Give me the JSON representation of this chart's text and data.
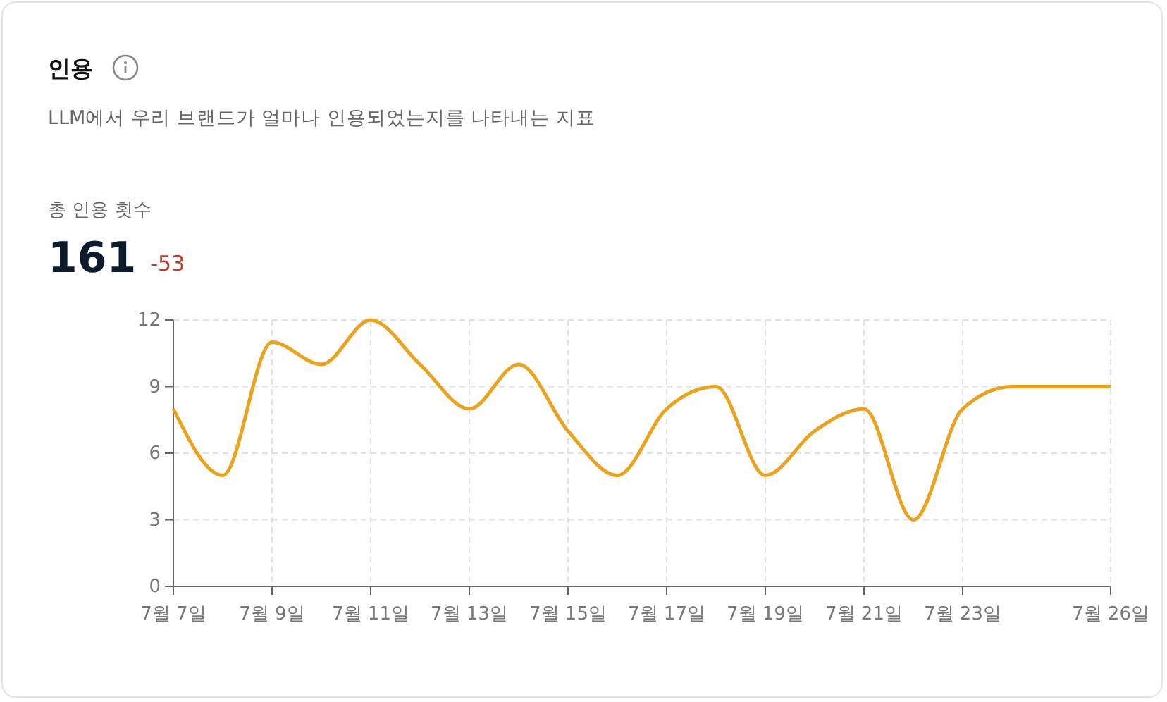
{
  "chart_data": {
    "type": "line",
    "title": "인용",
    "subtitle": "LLM에서 우리 브랜드가 얼마나 인용되었는지를 나타내는 지표",
    "annotations": [
      "총 인용 횟수",
      "161",
      "-53"
    ],
    "x": [
      "--07-07",
      "--07-08",
      "--07-09",
      "--07-10",
      "--07-11",
      "--07-12",
      "--07-13",
      "--07-14",
      "--07-15",
      "--07-16",
      "--07-17",
      "--07-18",
      "--07-19",
      "--07-20",
      "--07-21",
      "--07-22",
      "--07-23",
      "--07-24",
      "--07-25",
      "--07-26"
    ],
    "series": [
      {
        "color": "#eba21c",
        "values": [
          8,
          5,
          11,
          10,
          12,
          10,
          8,
          10,
          7,
          5,
          8,
          9,
          5,
          7,
          8,
          3,
          8,
          9,
          9,
          9
        ]
      }
    ],
    "xlim": [
      "--07-07",
      "--07-26"
    ],
    "xticks": [
      {
        "value": "--07-07",
        "label": "7월 7일"
      },
      {
        "value": "--07-09",
        "label": "7월 9일"
      },
      {
        "value": "--07-11",
        "label": "7월 11일"
      },
      {
        "value": "--07-13",
        "label": "7월 13일"
      },
      {
        "value": "--07-15",
        "label": "7월 15일"
      },
      {
        "value": "--07-17",
        "label": "7월 17일"
      },
      {
        "value": "--07-19",
        "label": "7월 19일"
      },
      {
        "value": "--07-21",
        "label": "7월 21일"
      },
      {
        "value": "--07-23",
        "label": "7월 23일"
      },
      {
        "value": "--07-26",
        "label": "7월 26일"
      }
    ],
    "ylim": [
      0,
      12
    ],
    "yticks": [
      0,
      3,
      6,
      9,
      12
    ],
    "grid": true,
    "marker": "none",
    "line_style": "solid"
  }
}
